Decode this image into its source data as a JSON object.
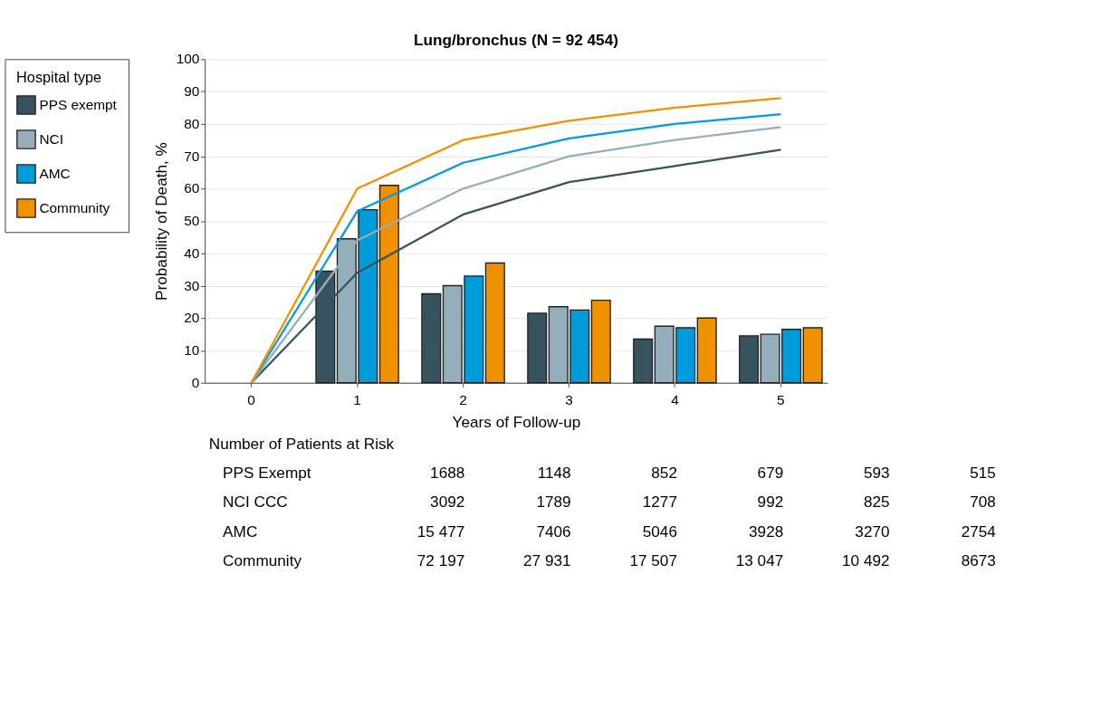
{
  "chart_data": {
    "type": "bar",
    "title": "Lung/bronchus (N = 92 454)",
    "xlabel": "Years of Follow-up",
    "ylabel": "Probability of Death, %",
    "legend_title": "Hospital type",
    "legend": "left",
    "grid": "y",
    "categories": [
      "0",
      "1",
      "2",
      "3",
      "4",
      "5"
    ],
    "ylim": [
      0,
      100
    ],
    "yticks": [
      0,
      10,
      20,
      30,
      40,
      50,
      60,
      70,
      80,
      90,
      100
    ],
    "series": [
      {
        "name": "PPS exempt",
        "color": "#37535f",
        "values": [
          null,
          34.5,
          27.5,
          21.5,
          13.5,
          14.5
        ]
      },
      {
        "name": "NCI",
        "color": "#94afbb",
        "values": [
          null,
          44.5,
          30,
          23.5,
          17.5,
          15
        ]
      },
      {
        "name": "AMC",
        "color": "#009bdb",
        "values": [
          null,
          53.5,
          33,
          22.5,
          17,
          16.5
        ]
      },
      {
        "name": "Community",
        "color": "#f09100",
        "values": [
          null,
          61,
          37,
          25.5,
          20,
          17
        ]
      },
      {
        "type": "line",
        "color": "#37535f",
        "values": [
          0,
          34,
          52,
          62,
          67,
          72
        ]
      },
      {
        "type": "line",
        "color": "#94afbb",
        "values": [
          0,
          44,
          60,
          70,
          75,
          79
        ]
      },
      {
        "type": "line",
        "color": "#009bdb",
        "values": [
          0,
          53,
          68,
          75.5,
          80,
          83
        ]
      },
      {
        "type": "line",
        "color": "#f09100",
        "values": [
          0,
          60,
          75,
          81,
          85,
          88
        ]
      }
    ],
    "annotations": [
      "Number of Patients at Risk",
      "PPS Exempt",
      "1688",
      "1148",
      "852",
      "679",
      "593",
      "515",
      "NCI CCC",
      "3092",
      "1789",
      "1277",
      "992",
      "825",
      "708",
      "AMC",
      "15 477",
      "7406",
      "5046",
      "3928",
      "3270",
      "2754",
      "Community",
      "72 197",
      "27 931",
      "17 507",
      "13 047",
      "10 492",
      "8673"
    ]
  }
}
